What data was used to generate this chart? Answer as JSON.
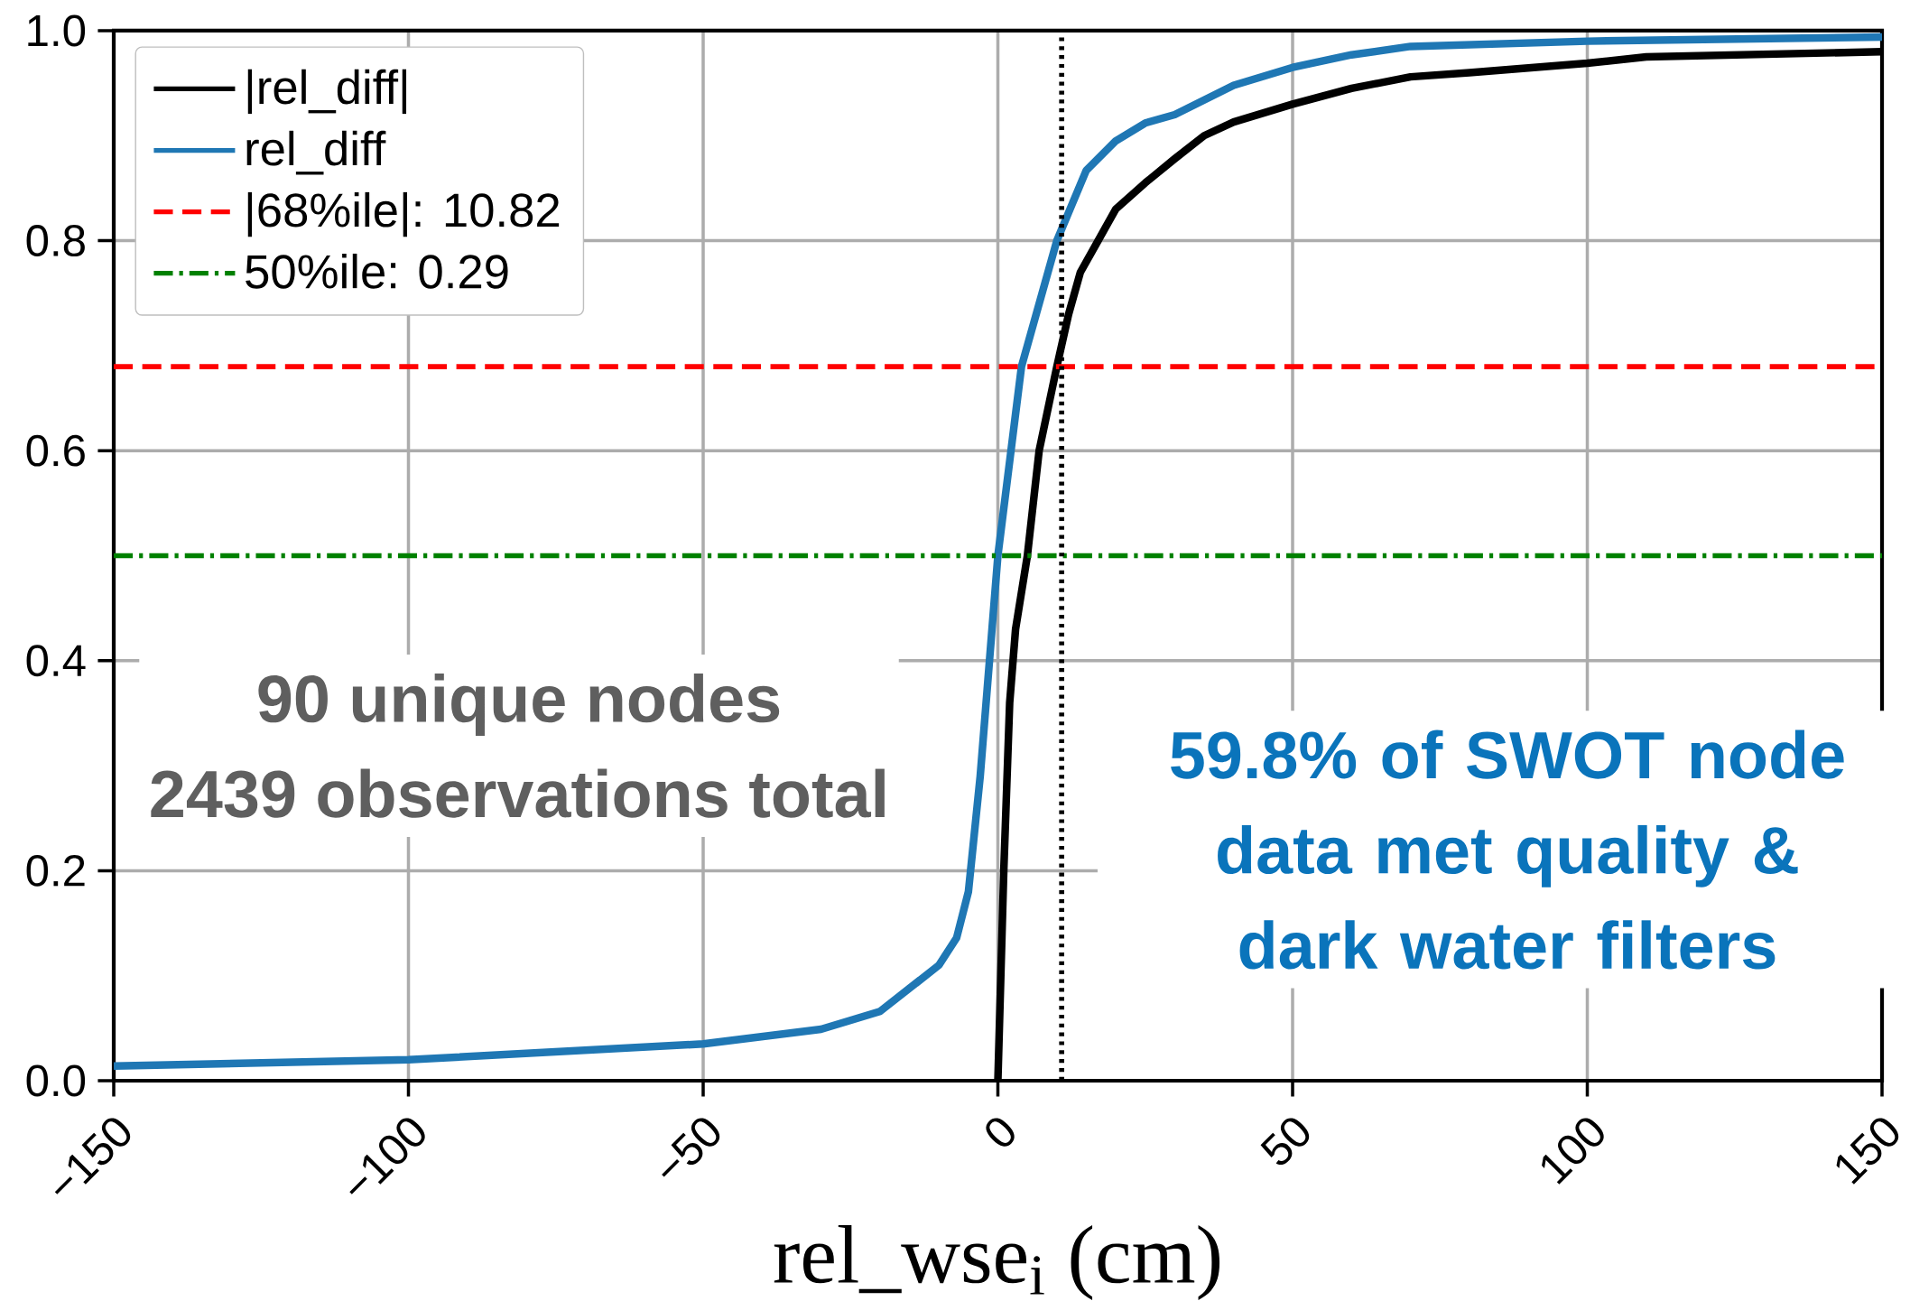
{
  "chart_data": {
    "type": "line",
    "xlabel": "rel_wse$_{i}$ (cm)",
    "xlim": [
      -150,
      150
    ],
    "ylim": [
      0,
      1
    ],
    "xticks": [
      {
        "value": -150,
        "label": "−150"
      },
      {
        "value": -100,
        "label": "−100"
      },
      {
        "value": -50,
        "label": "−50"
      },
      0,
      50,
      100,
      150
    ],
    "yticks": [
      {
        "value": 0,
        "label": "0.0"
      },
      0.2,
      0.4,
      0.6,
      0.8,
      {
        "value": 1,
        "label": "1.0"
      }
    ],
    "grid": true,
    "legend": "top left",
    "series": [
      {
        "name": "|rel_diff|",
        "color": "#000000",
        "x": [
          0,
          0.5,
          1,
          2,
          3,
          5,
          7,
          10,
          12,
          14,
          17,
          20,
          25,
          30,
          35,
          40,
          50,
          60,
          70,
          80,
          100,
          110,
          150
        ],
        "values": [
          0,
          0.1,
          0.2,
          0.36,
          0.43,
          0.5,
          0.6,
          0.68,
          0.73,
          0.77,
          0.8,
          0.83,
          0.855,
          0.878,
          0.9,
          0.913,
          0.93,
          0.945,
          0.956,
          0.96,
          0.969,
          0.975,
          0.98
        ]
      },
      {
        "name": "rel_diff",
        "color": "#1f77b4",
        "x": [
          -150,
          -100,
          -50,
          -30,
          -20,
          -10,
          -7,
          -5,
          -3,
          -1,
          0,
          2,
          4,
          7,
          10,
          15,
          20,
          25,
          30,
          40,
          50,
          60,
          70,
          100,
          150
        ],
        "values": [
          0.014,
          0.02,
          0.035,
          0.049,
          0.066,
          0.11,
          0.136,
          0.18,
          0.29,
          0.43,
          0.5,
          0.59,
          0.68,
          0.74,
          0.8,
          0.867,
          0.895,
          0.912,
          0.92,
          0.948,
          0.965,
          0.977,
          0.985,
          0.99,
          0.994
        ]
      }
    ],
    "ref_lines": [
      {
        "axis": "y",
        "value": 0.68,
        "label": "|68%ile|: 10.82",
        "color": "#ff0000",
        "line_style": "dashed"
      },
      {
        "axis": "y",
        "value": 0.5,
        "label": "50%ile: 0.29",
        "color": "#008000",
        "line_style": "dashdot"
      },
      {
        "axis": "x",
        "value": 10.82,
        "color": "#000000",
        "line_style": "dotted"
      }
    ],
    "annotations": [
      "90 unique nodes",
      "2439 observations total",
      "59.8% of SWOT node data met quality & dark water filters"
    ]
  }
}
